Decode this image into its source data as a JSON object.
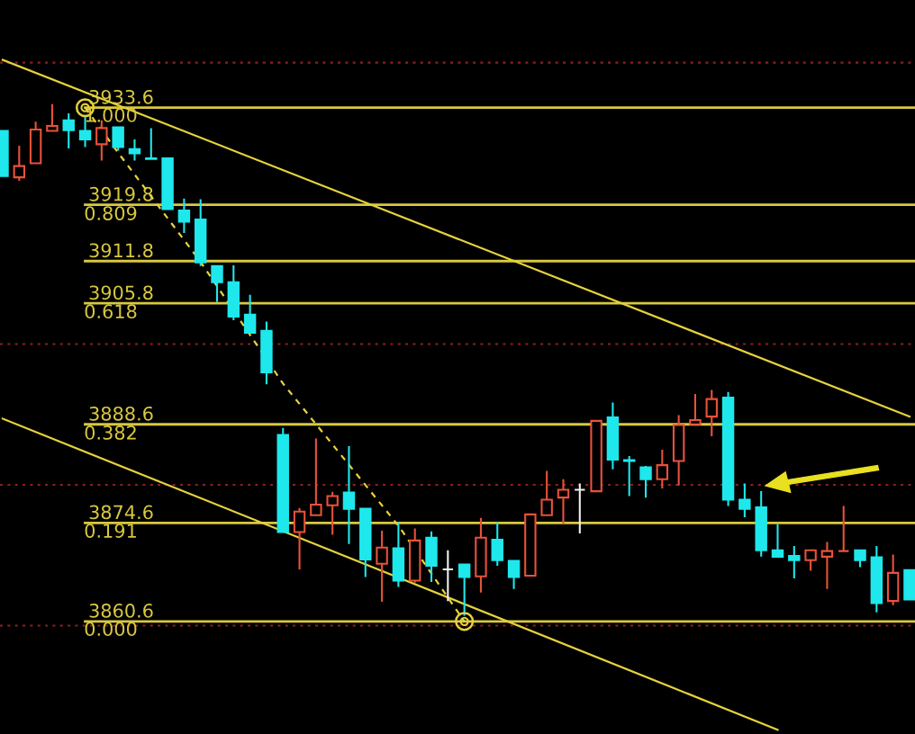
{
  "chart_data": {
    "type": "candlestick",
    "categories": [
      null,
      null,
      null,
      null,
      null,
      null,
      null,
      null,
      null,
      null,
      null,
      null,
      null,
      null,
      null,
      null,
      null,
      null,
      null,
      null,
      null,
      null,
      null,
      null,
      null,
      null,
      null,
      null,
      null,
      null,
      null,
      null,
      null,
      null,
      null,
      null,
      null,
      null,
      null,
      null,
      null,
      null,
      null,
      null,
      null,
      null,
      null,
      null,
      null,
      null,
      null,
      null,
      null,
      null,
      null,
      null
    ],
    "ohlc": [
      [
        3930.3,
        3930.3,
        3923.9,
        3923.9
      ],
      [
        3923.7,
        3928.2,
        3923.2,
        3925.3
      ],
      [
        3925.7,
        3931.6,
        3925.7,
        3930.5
      ],
      [
        3930.3,
        3934.1,
        3930.3,
        3931.0
      ],
      [
        3931.8,
        3932.8,
        3927.8,
        3930.4
      ],
      [
        3930.3,
        3932.4,
        3928.0,
        3929.1
      ],
      [
        3928.4,
        3931.8,
        3926.1,
        3930.7
      ],
      [
        3930.8,
        3930.8,
        3927.5,
        3928.0
      ],
      [
        3927.7,
        3929.1,
        3926.1,
        3927.1
      ],
      [
        3926.4,
        3930.7,
        3926.3,
        3926.3
      ],
      [
        3926.4,
        3926.4,
        3919.2,
        3919.2
      ],
      [
        3919.0,
        3920.7,
        3915.8,
        3917.4
      ],
      [
        3917.7,
        3920.6,
        3911.1,
        3911.6
      ],
      [
        3911.1,
        3911.1,
        3906.0,
        3908.8
      ],
      [
        3908.8,
        3911.2,
        3903.4,
        3903.9
      ],
      [
        3904.2,
        3907.0,
        3901.6,
        3901.6
      ],
      [
        3901.9,
        3903.2,
        3894.3,
        3896.0
      ],
      [
        3887.1,
        3888.1,
        3873.3,
        3873.3
      ],
      [
        3873.3,
        3876.7,
        3868.0,
        3876.2
      ],
      [
        3875.7,
        3886.6,
        3875.7,
        3877.2
      ],
      [
        3877.1,
        3879.0,
        3872.9,
        3878.4
      ],
      [
        3878.9,
        3885.5,
        3871.6,
        3876.6
      ],
      [
        3876.6,
        3876.6,
        3866.9,
        3869.4
      ],
      [
        3868.8,
        3873.5,
        3863.4,
        3871.1
      ],
      [
        3871.0,
        3874.7,
        3865.5,
        3866.4
      ],
      [
        3866.4,
        3873.8,
        3866.1,
        3872.1
      ],
      [
        3872.5,
        3873.4,
        3866.2,
        3868.5
      ],
      [
        3868.0,
        3870.7,
        3863.5,
        3868.0
      ],
      [
        3868.7,
        3868.7,
        3861.4,
        3866.9
      ],
      [
        3867.0,
        3875.3,
        3864.7,
        3872.5
      ],
      [
        3872.2,
        3874.7,
        3868.5,
        3869.3
      ],
      [
        3869.2,
        3869.2,
        3865.2,
        3866.9
      ],
      [
        3867.1,
        3875.8,
        3867.1,
        3875.8
      ],
      [
        3875.7,
        3882.0,
        3875.7,
        3877.9
      ],
      [
        3878.2,
        3880.8,
        3874.4,
        3879.3
      ],
      [
        3879.3,
        3880.2,
        3873.1,
        3879.3
      ],
      [
        3879.1,
        3889.1,
        3879.1,
        3889.1
      ],
      [
        3889.6,
        3891.7,
        3882.2,
        3883.6
      ],
      [
        3883.5,
        3884.1,
        3878.4,
        3883.4
      ],
      [
        3882.5,
        3882.7,
        3878.2,
        3880.8
      ],
      [
        3880.8,
        3885.0,
        3879.5,
        3882.8
      ],
      [
        3883.4,
        3889.9,
        3879.9,
        3888.5
      ],
      [
        3888.6,
        3892.9,
        3888.6,
        3889.2
      ],
      [
        3889.7,
        3893.5,
        3886.9,
        3892.2
      ],
      [
        3892.4,
        3893.2,
        3877.0,
        3877.9
      ],
      [
        3877.9,
        3880.2,
        3875.4,
        3876.6
      ],
      [
        3876.8,
        3879.1,
        3869.8,
        3870.7
      ],
      [
        3870.7,
        3874.4,
        3869.8,
        3869.8
      ],
      [
        3869.9,
        3871.3,
        3866.7,
        3869.3
      ],
      [
        3869.3,
        3870.8,
        3867.8,
        3870.7
      ],
      [
        3869.8,
        3871.9,
        3865.2,
        3870.6
      ],
      [
        3870.6,
        3877.0,
        3870.6,
        3870.6
      ],
      [
        3870.7,
        3870.7,
        3868.3,
        3869.3
      ],
      [
        3869.7,
        3871.3,
        3861.9,
        3863.2
      ],
      [
        3863.5,
        3870.1,
        3862.9,
        3867.5
      ],
      [
        3867.9,
        3867.9,
        3863.7,
        3863.7
      ]
    ],
    "colors": [
      "#1ee8ec",
      "#e8523a",
      "#e8523a",
      "#e8523a",
      "#1ee8ec",
      "#1ee8ec",
      "#e8523a",
      "#1ee8ec",
      "#1ee8ec",
      "#1ee8ec",
      "#1ee8ec",
      "#1ee8ec",
      "#1ee8ec",
      "#1ee8ec",
      "#1ee8ec",
      "#1ee8ec",
      "#1ee8ec",
      "#1ee8ec",
      "#e8523a",
      "#e8523a",
      "#e8523a",
      "#1ee8ec",
      "#1ee8ec",
      "#e8523a",
      "#1ee8ec",
      "#e8523a",
      "#1ee8ec",
      "#f0f0f0",
      "#1ee8ec",
      "#e8523a",
      "#1ee8ec",
      "#1ee8ec",
      "#e8523a",
      "#e8523a",
      "#e8523a",
      "#f0f0f0",
      "#e8523a",
      "#1ee8ec",
      "#1ee8ec",
      "#1ee8ec",
      "#e8523a",
      "#e8523a",
      "#e8523a",
      "#e8523a",
      "#1ee8ec",
      "#1ee8ec",
      "#1ee8ec",
      "#1ee8ec",
      "#1ee8ec",
      "#e8523a",
      "#e8523a",
      "#e8523a",
      "#1ee8ec",
      "#1ee8ec",
      "#e8523a",
      "#1ee8ec"
    ],
    "series": [
      {
        "type": "line",
        "color": "#e6d23c",
        "values": [
          3940.4,
          null,
          null,
          null,
          null,
          null,
          null,
          null,
          null,
          null,
          null,
          null,
          null,
          null,
          null,
          null,
          null,
          null,
          null,
          null,
          null,
          null,
          null,
          null,
          null,
          null,
          null,
          null,
          null,
          null,
          null,
          null,
          null,
          null,
          null,
          null,
          null,
          null,
          null,
          null,
          null,
          null,
          null,
          null,
          null,
          null,
          null,
          null,
          null,
          null,
          null,
          null,
          null,
          null,
          null,
          3889.7
        ]
      },
      {
        "type": "line",
        "color": "#e6d23c",
        "values": [
          3889.4,
          null,
          null,
          null,
          null,
          null,
          null,
          null,
          null,
          null,
          null,
          null,
          null,
          null,
          null,
          null,
          null,
          null,
          null,
          null,
          null,
          null,
          null,
          null,
          null,
          null,
          null,
          null,
          null,
          null,
          null,
          null,
          null,
          null,
          null,
          null,
          null,
          null,
          null,
          null,
          null,
          null,
          null,
          null,
          null,
          null,
          null,
          3845.2,
          null,
          null,
          null,
          null,
          null,
          null,
          null,
          null
        ]
      },
      {
        "type": "line",
        "color": "#e6d23c",
        "line_style": "dashed",
        "values": [
          null,
          null,
          null,
          null,
          null,
          3933.6,
          null,
          3927.2,
          null,
          null,
          null,
          null,
          3911.7,
          null,
          null,
          null,
          null,
          3894.4,
          null,
          null,
          null,
          null,
          null,
          null,
          3874.2,
          null,
          null,
          null,
          3860.6,
          null,
          null,
          null,
          null,
          null,
          null,
          null,
          null,
          null,
          null,
          null,
          null,
          null,
          null,
          null,
          null,
          null,
          null,
          null,
          null,
          null,
          null,
          null,
          null,
          null,
          null,
          null
        ]
      },
      {
        "type": "scatter",
        "color": "#e6d23c",
        "marker": "circle",
        "values": [
          null,
          null,
          null,
          null,
          null,
          3933.6,
          null,
          null,
          null,
          null,
          null,
          null,
          null,
          null,
          null,
          null,
          null,
          null,
          null,
          null,
          null,
          null,
          null,
          null,
          null,
          null,
          null,
          null,
          3860.6,
          null,
          null,
          null,
          null,
          null,
          null,
          null,
          null,
          null,
          null,
          null,
          null,
          null,
          null,
          null,
          null,
          null,
          null,
          null,
          null,
          null,
          null,
          null,
          null,
          null,
          null,
          null
        ]
      }
    ],
    "ref_lines": [
      {
        "axis": "y",
        "value": 3933.6,
        "color": "#d8c840"
      },
      {
        "axis": "y",
        "value": 3919.8,
        "color": "#d8c840"
      },
      {
        "axis": "y",
        "value": 3911.8,
        "color": "#d8c840"
      },
      {
        "axis": "y",
        "value": 3905.8,
        "color": "#d8c840"
      },
      {
        "axis": "y",
        "value": 3888.6,
        "color": "#d8c840"
      },
      {
        "axis": "y",
        "value": 3874.6,
        "color": "#d8c840"
      },
      {
        "axis": "y",
        "value": 3860.6,
        "color": "#d8c840"
      },
      {
        "axis": "y",
        "value": 3940,
        "color": "#8a2020",
        "line_style": "dotted"
      },
      {
        "axis": "y",
        "value": 3900,
        "color": "#8a2020",
        "line_style": "dotted"
      },
      {
        "axis": "y",
        "value": 3880,
        "color": "#8a2020",
        "line_style": "dotted"
      },
      {
        "axis": "y",
        "value": 3860,
        "color": "#8a2020",
        "line_style": "dotted"
      }
    ],
    "ylim": [
      3844.6,
      3948.9
    ],
    "yticks": [
      3933.6,
      3919.8,
      3911.8,
      3905.8,
      3888.6,
      3874.6,
      3860.6
    ],
    "y2lim": [
      -0.219,
      1.2096
    ],
    "y2ticks": [
      {
        "value": 1,
        "label": "1.000"
      },
      {
        "value": 0.809,
        "label": "0.809"
      },
      {
        "value": 0.618,
        "label": "0.618"
      },
      {
        "value": 0.382,
        "label": "0.382"
      },
      {
        "value": 0.191,
        "label": "0.191"
      },
      {
        "value": 0,
        "label": "0.000"
      }
    ]
  }
}
